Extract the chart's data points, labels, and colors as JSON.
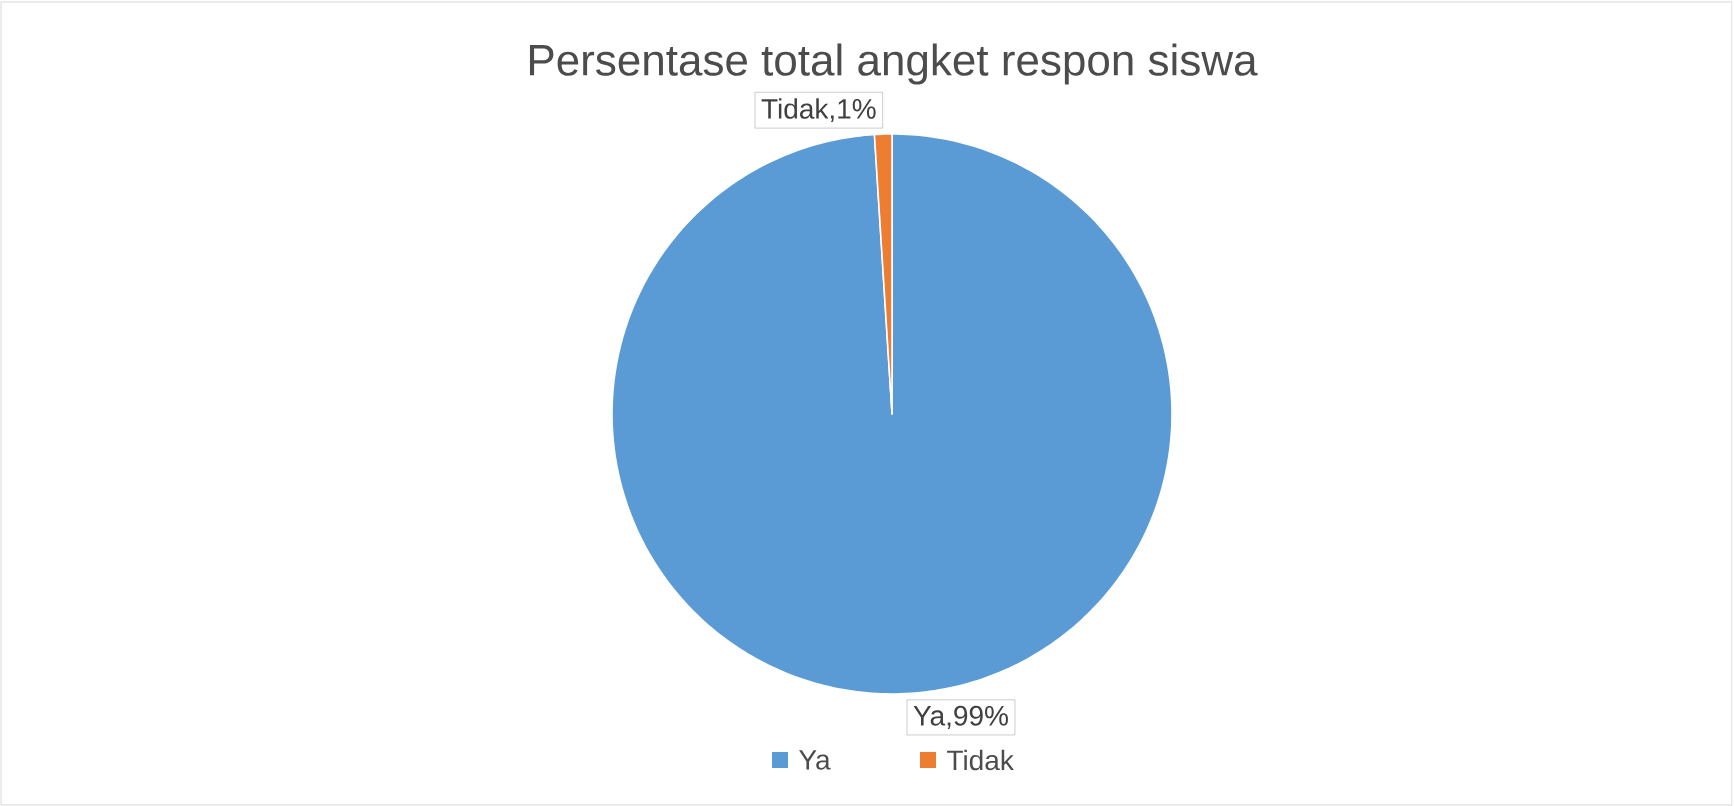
{
  "chart_data": {
    "type": "pie",
    "title": "Persentase total angket respon siswa",
    "categories": [
      "Ya",
      "Tidak"
    ],
    "values": [
      99,
      1
    ],
    "colors": [
      "#5b9bd5",
      "#ed7d31"
    ],
    "value_labels": [
      "Ya,99%",
      "Tidak,1%"
    ],
    "legend": "bottom"
  }
}
